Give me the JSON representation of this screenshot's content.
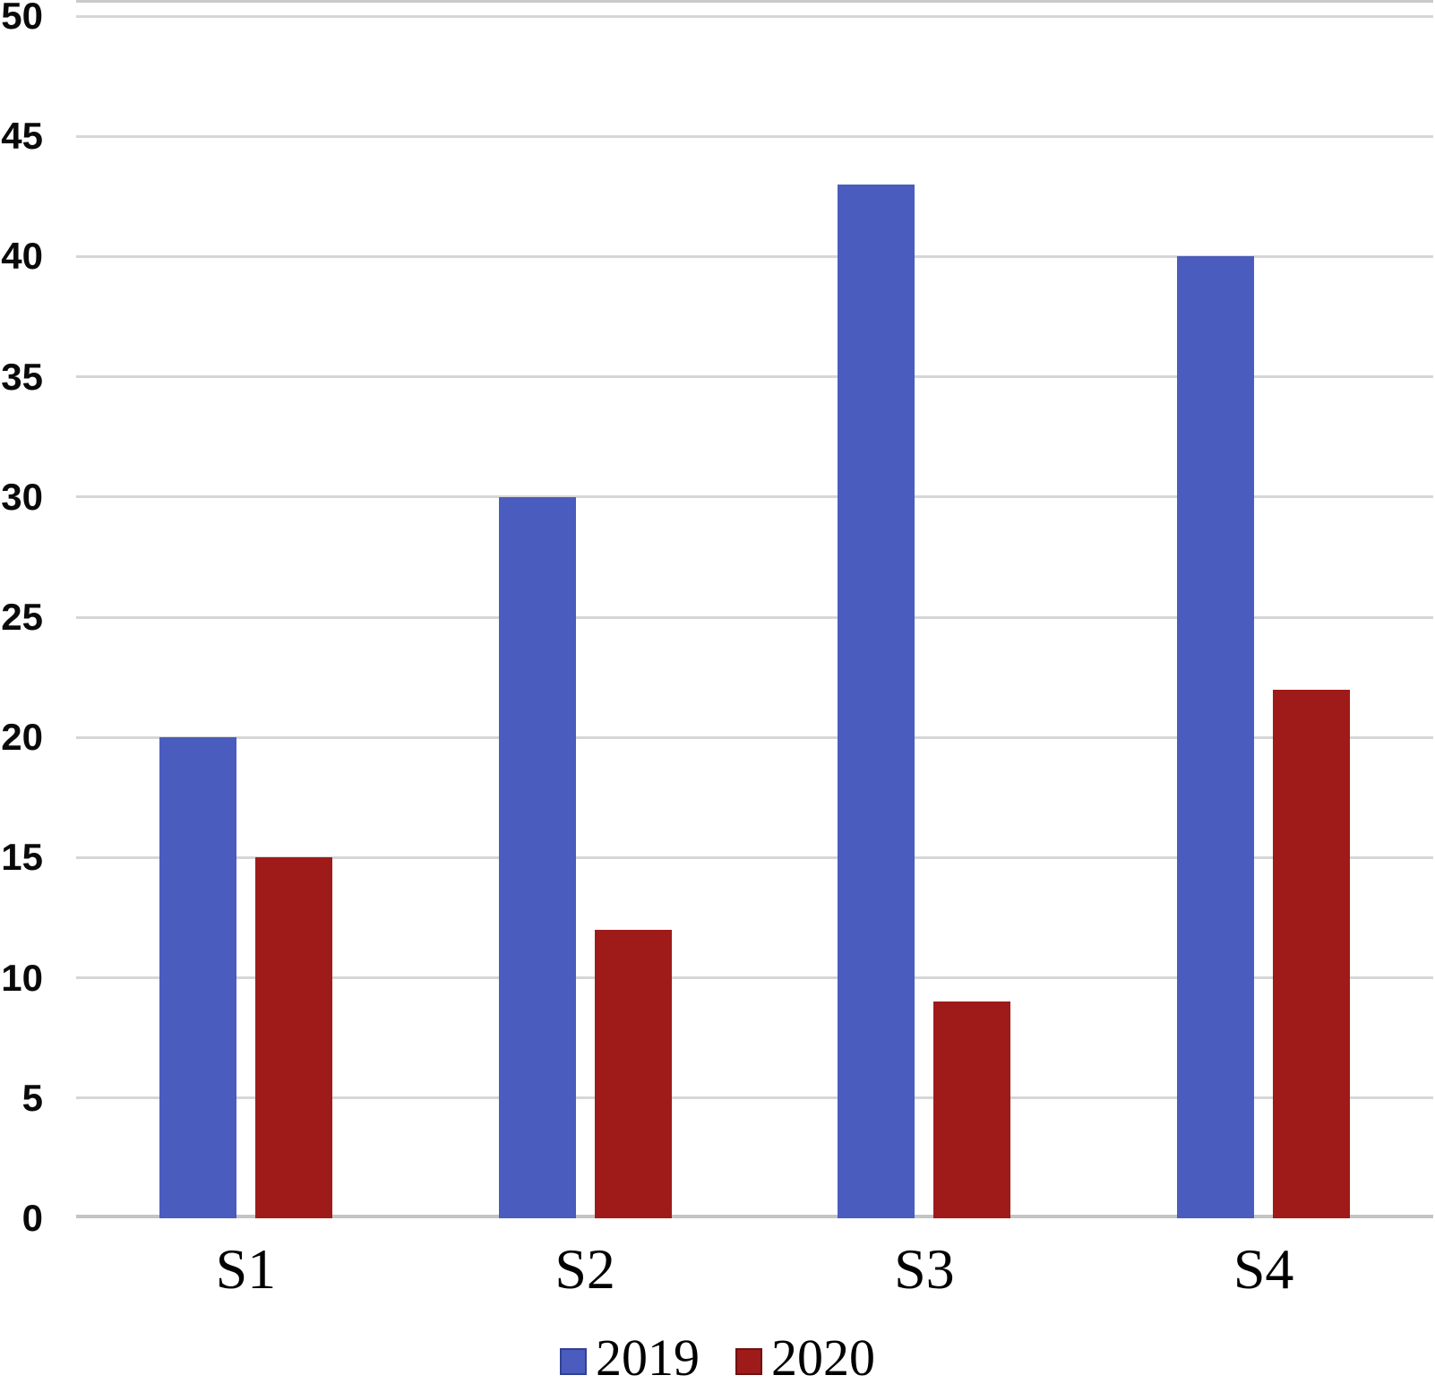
{
  "chart_data": {
    "type": "bar",
    "title": "",
    "xlabel": "",
    "ylabel": "",
    "categories": [
      "S1",
      "S2",
      "S3",
      "S4"
    ],
    "series": [
      {
        "name": "2019",
        "color": "#4A5CBE",
        "border_color": "#31418F",
        "values": [
          20,
          30,
          43,
          40
        ]
      },
      {
        "name": "2020",
        "color": "#9E1B1A",
        "border_color": "#6E1212",
        "values": [
          15,
          12,
          9,
          22
        ]
      }
    ],
    "ylim": [
      0,
      50
    ],
    "ytick_step": 5,
    "ytick_labels": [
      "0",
      "5",
      "10",
      "15",
      "20",
      "25",
      "30",
      "35",
      "40",
      "45",
      "50"
    ],
    "grid": true,
    "legend_position": "bottom"
  },
  "colors": {
    "background": "#FFFFFF",
    "gridline": "#D6D6D6",
    "axis_line": "#C4C4C4",
    "top_crop_line": "#9E9E9E",
    "tick_text": "#0A0A0A",
    "label_text": "#000000"
  }
}
